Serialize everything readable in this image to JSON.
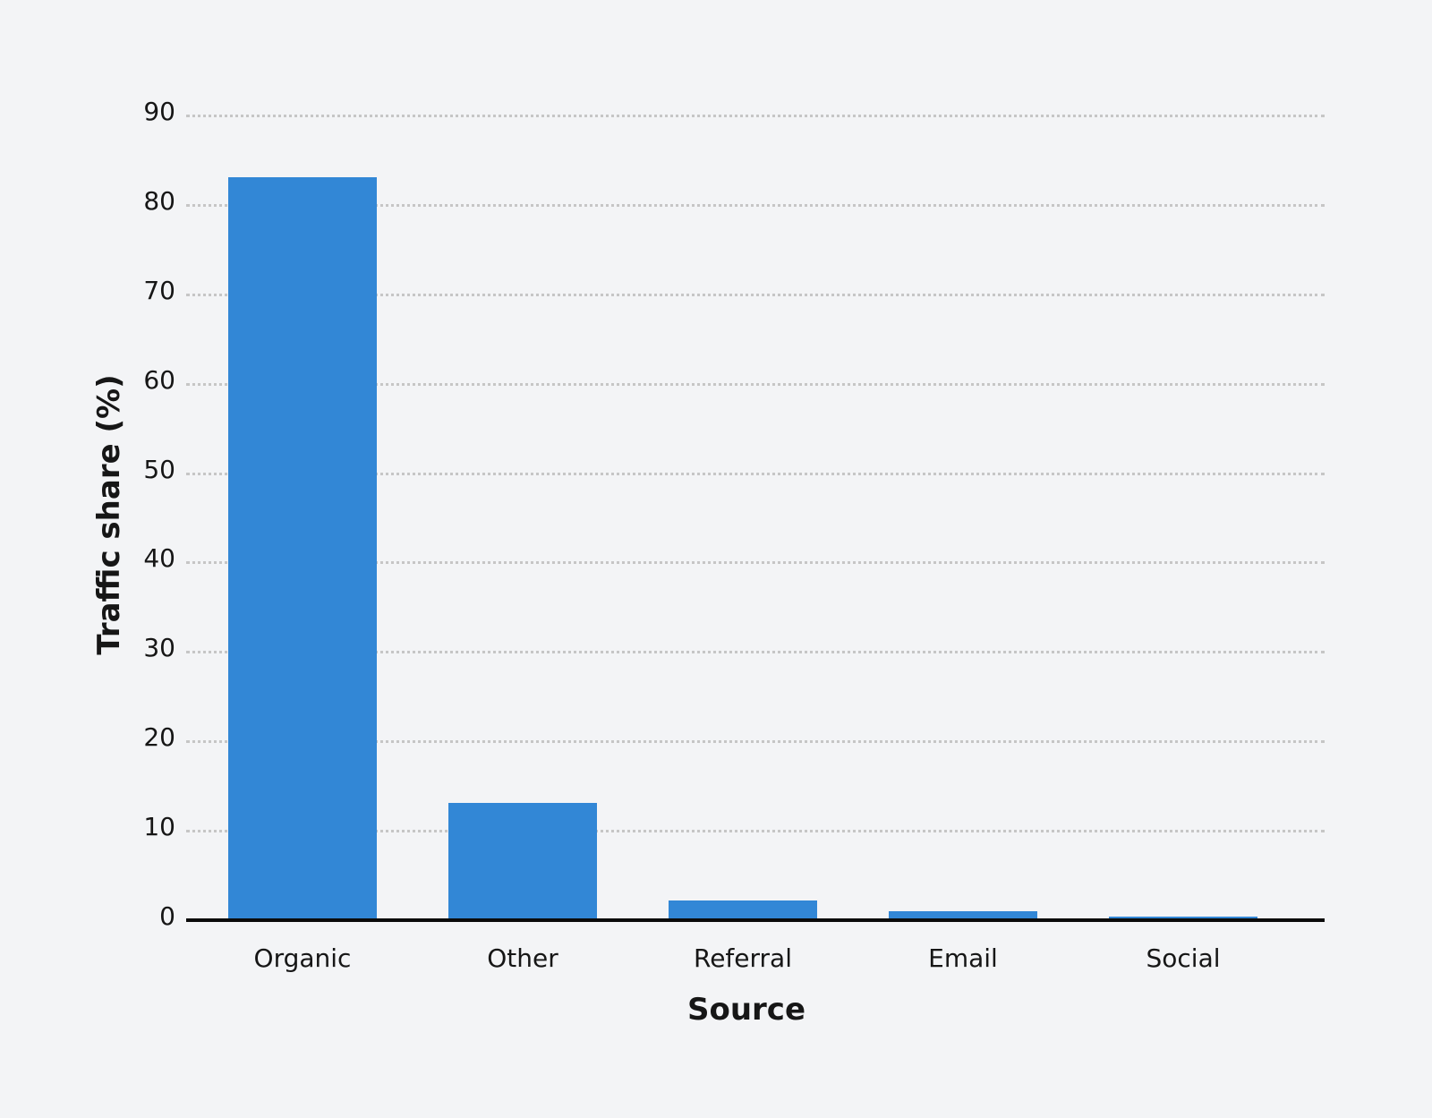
{
  "chart_data": {
    "type": "bar",
    "title": "",
    "xlabel": "Source",
    "ylabel": "Traffic share (%)",
    "categories": [
      "Organic",
      "Other",
      "Referral",
      "Email",
      "Social"
    ],
    "values": [
      83.1,
      13.1,
      2.2,
      1.0,
      0.4
    ],
    "ylim": [
      0,
      90
    ],
    "yticks": [
      "0",
      "10",
      "20",
      "30",
      "40",
      "50",
      "60",
      "70",
      "80",
      "90"
    ],
    "grid": true,
    "legend": null,
    "bar_color": "#3287d6"
  }
}
